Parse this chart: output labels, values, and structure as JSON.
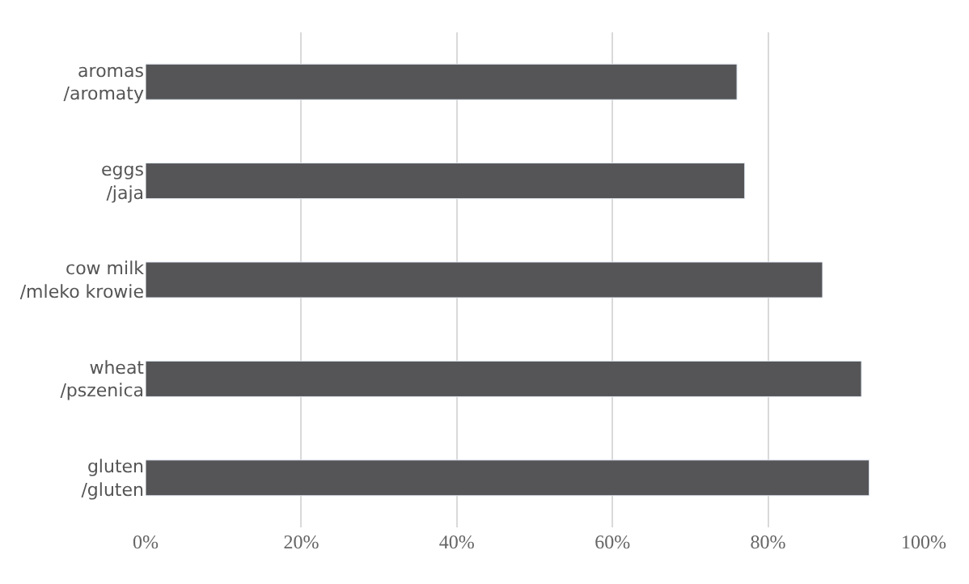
{
  "chart_data": {
    "type": "bar",
    "orientation": "horizontal",
    "categories": [
      "aromas\n/aromaty",
      "eggs\n/jaja",
      "cow milk\n/mleko krowie",
      "wheat\n/pszenica",
      "gluten\n/gluten"
    ],
    "values": [
      76,
      77,
      87,
      92,
      93
    ],
    "color": "#555557",
    "xlim": [
      0,
      100
    ],
    "xticks": [
      {
        "value": 0,
        "label": "0%"
      },
      {
        "value": 20,
        "label": "20%"
      },
      {
        "value": 40,
        "label": "40%"
      },
      {
        "value": 60,
        "label": "60%"
      },
      {
        "value": 80,
        "label": "80%"
      },
      {
        "value": 100,
        "label": "100%"
      }
    ],
    "grid": "x"
  }
}
